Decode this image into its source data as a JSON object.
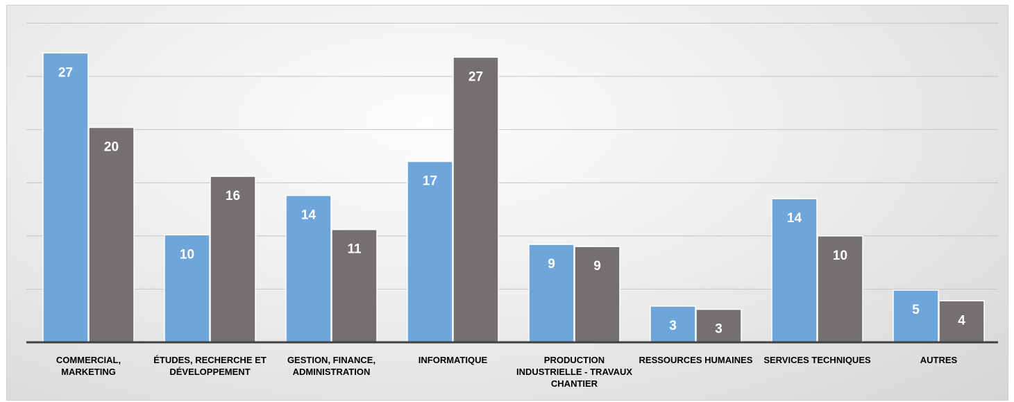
{
  "chart_data": {
    "type": "bar",
    "categories": [
      "COMMERCIAL, MARKETING",
      "ÉTUDES, RECHERCHE ET DÉVELOPPEMENT",
      "GESTION, FINANCE, ADMINISTRATION",
      "INFORMATIQUE",
      "PRODUCTION INDUSTRIELLE - TRAVAUX CHANTIER",
      "RESSOURCES HUMAINES",
      "SERVICES TECHNIQUES",
      "AUTRES"
    ],
    "series": [
      {
        "values": [
          27,
          10,
          14,
          17,
          9,
          3,
          14,
          5
        ],
        "color": "#6ea6dc"
      },
      {
        "values": [
          20,
          16,
          11,
          27,
          9,
          3,
          10,
          4
        ],
        "color": "#747070"
      }
    ],
    "display_heights": [
      [
        27.2,
        10.1,
        13.8,
        17.0,
        9.2,
        3.4,
        13.5,
        4.9
      ],
      [
        20.2,
        15.6,
        10.6,
        26.8,
        9.0,
        3.1,
        10.0,
        3.9
      ]
    ],
    "ylim": [
      0,
      30
    ],
    "grid": true,
    "data_labels": true,
    "legend": "none"
  }
}
